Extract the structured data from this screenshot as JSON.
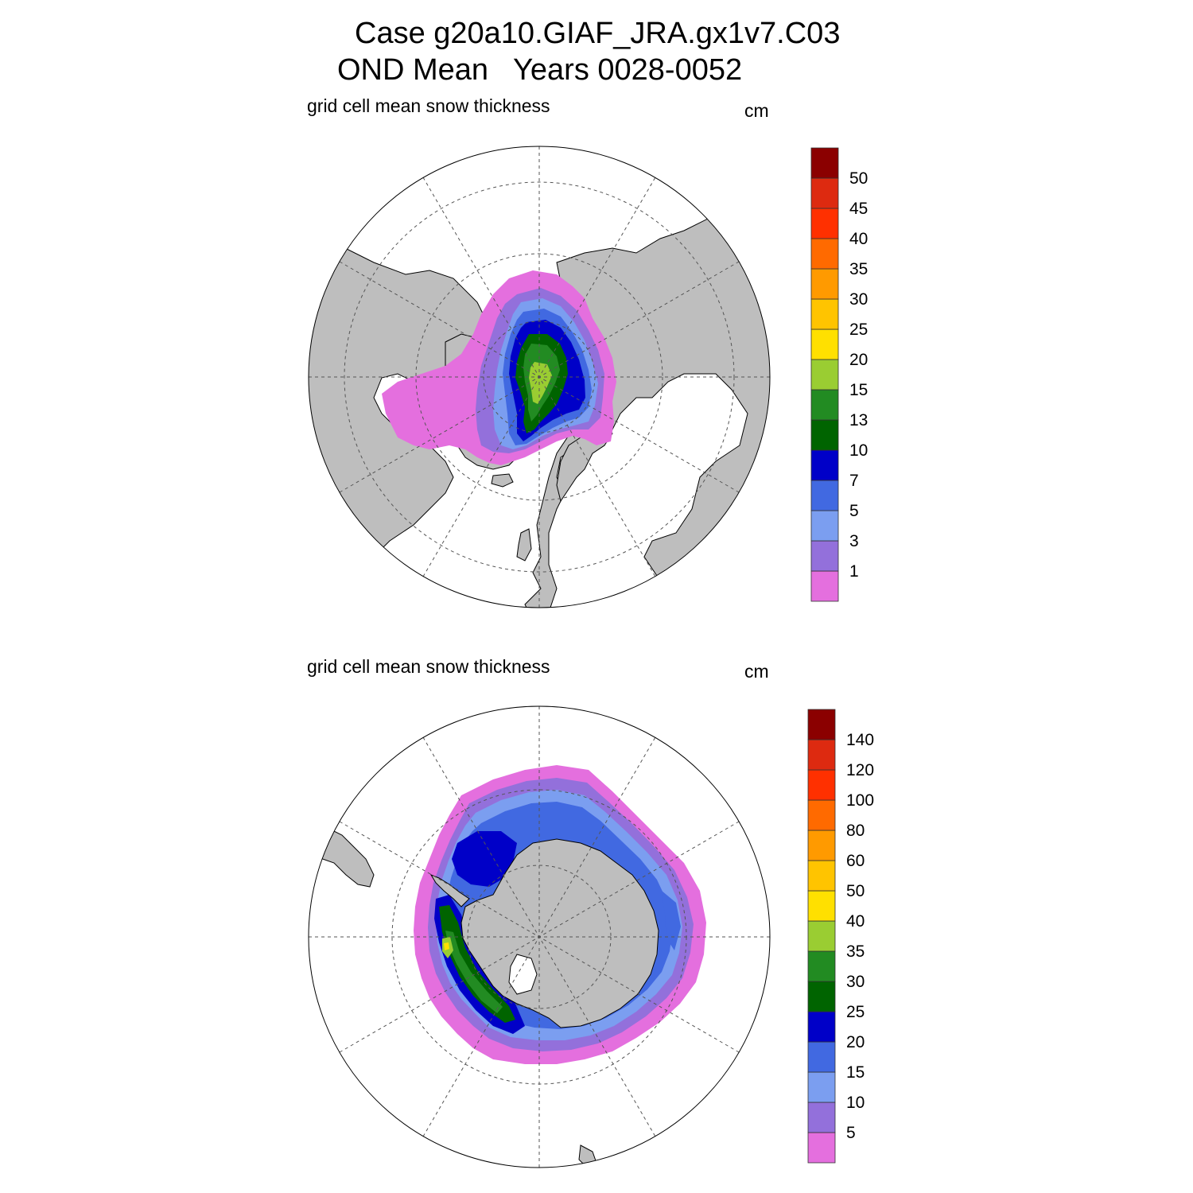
{
  "title": {
    "line1": "Case g20a10.GIAF_JRA.gx1v7.C03",
    "line2": "OND Mean   Years 0028-0052"
  },
  "colors": {
    "land": "#bebebe",
    "ocean": "#ffffff",
    "palette": [
      "#e46fde",
      "#9370db",
      "#7b9ef0",
      "#4169e1",
      "#0000c8",
      "#006400",
      "#228b22",
      "#9acd32",
      "#ffe000",
      "#ffc400",
      "#ff9a00",
      "#ff6a00",
      "#ff3000",
      "#dd2a10",
      "#8b0000"
    ]
  },
  "panels": [
    {
      "id": "arctic",
      "hemisphere": "north",
      "label": "grid cell mean snow thickness",
      "units": "cm",
      "colorbar_levels": [
        "1",
        "3",
        "5",
        "7",
        "10",
        "13",
        "15",
        "20",
        "25",
        "30",
        "35",
        "40",
        "45",
        "50"
      ]
    },
    {
      "id": "antarctic",
      "hemisphere": "south",
      "label": "grid cell mean snow thickness",
      "units": "cm",
      "colorbar_levels": [
        "5",
        "10",
        "15",
        "20",
        "25",
        "30",
        "35",
        "40",
        "50",
        "60",
        "80",
        "100",
        "120",
        "140"
      ]
    }
  ]
}
